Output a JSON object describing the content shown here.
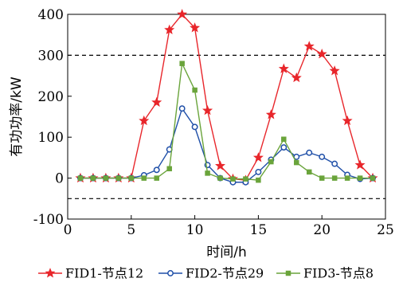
{
  "chart_data": {
    "type": "line",
    "xlabel": "时间/h",
    "ylabel": "有功功率/kW",
    "xlim": [
      0,
      25
    ],
    "ylim": [
      -100,
      400
    ],
    "xticks": [
      0,
      5,
      10,
      15,
      20,
      25
    ],
    "yticks": [
      -100,
      0,
      100,
      200,
      300,
      400
    ],
    "grid": false,
    "legend_position": "bottom",
    "reference_lines": [
      300,
      -50
    ],
    "reference_line_color": "#000000",
    "x": [
      1,
      2,
      3,
      4,
      5,
      6,
      7,
      8,
      9,
      10,
      11,
      12,
      13,
      14,
      15,
      16,
      17,
      18,
      19,
      20,
      21,
      22,
      23,
      24
    ],
    "series": [
      {
        "name": "FID1-节点12",
        "color": "#e8262b",
        "marker": "star",
        "values": [
          0,
          0,
          0,
          0,
          0,
          140,
          185,
          362,
          400,
          367,
          165,
          30,
          -2,
          -5,
          50,
          155,
          267,
          245,
          322,
          303,
          262,
          140,
          32,
          0
        ]
      },
      {
        "name": "FID2-节点29",
        "color": "#1f4fa8",
        "marker": "circle",
        "values": [
          0,
          0,
          0,
          0,
          0,
          7,
          20,
          70,
          170,
          125,
          32,
          0,
          -10,
          -10,
          15,
          45,
          75,
          52,
          62,
          52,
          35,
          8,
          -2,
          0
        ]
      },
      {
        "name": "FID3-节点8",
        "color": "#6aa43b",
        "marker": "square",
        "values": [
          0,
          0,
          0,
          0,
          0,
          0,
          0,
          23,
          280,
          215,
          12,
          0,
          -2,
          -2,
          -5,
          40,
          95,
          38,
          15,
          0,
          0,
          0,
          0,
          0
        ]
      }
    ]
  }
}
